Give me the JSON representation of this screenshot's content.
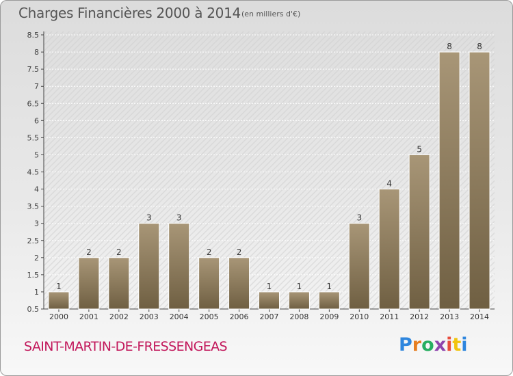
{
  "header": {
    "title": "Charges Financières 2000 à 2014",
    "subtitle": "(en milliers d'€)"
  },
  "footer": {
    "commune": "SAINT-MARTIN-DE-FRESSENGEAS",
    "logo": "Proxiti"
  },
  "colors": {
    "bar_top": "#a89677",
    "bar_bottom": "#6f5f42",
    "title": "#555555",
    "commune": "#c2185b"
  },
  "chart_data": {
    "type": "bar",
    "title": "Charges Financières 2000 à 2014",
    "subtitle": "(en milliers d'€)",
    "categories": [
      "2000",
      "2001",
      "2002",
      "2003",
      "2004",
      "2005",
      "2006",
      "2007",
      "2008",
      "2009",
      "2010",
      "2011",
      "2012",
      "2013",
      "2014"
    ],
    "values": [
      1,
      2,
      2,
      3,
      3,
      2,
      2,
      1,
      1,
      1,
      3,
      4,
      5,
      8,
      8
    ],
    "value_labels": [
      "1",
      "2",
      "2",
      "3",
      "3",
      "2",
      "2",
      "1",
      "1",
      "1",
      "3",
      "4",
      "5",
      "8",
      "8"
    ],
    "ylim": [
      0.5,
      8.5
    ],
    "yticks": [
      "0.5",
      "1",
      "1.5",
      "2",
      "2.5",
      "3",
      "3.5",
      "4",
      "4.5",
      "5",
      "5.5",
      "6",
      "6.5",
      "7",
      "7.5",
      "8",
      "8.5"
    ],
    "grid": true
  }
}
